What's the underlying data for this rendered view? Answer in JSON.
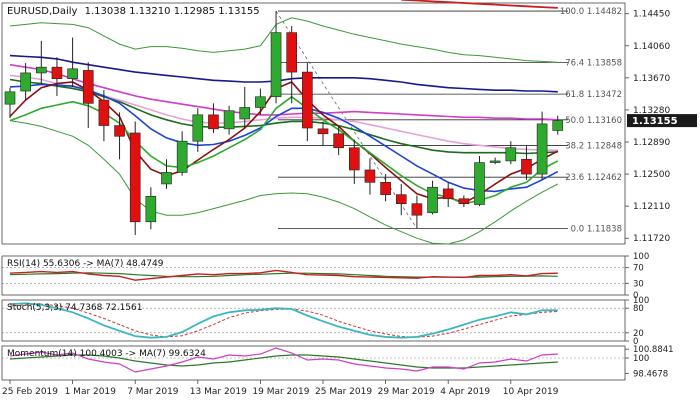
{
  "chart_data": {
    "type": "candlestick",
    "symbol": "EURUSD",
    "timeframe": "Daily",
    "header_title": "EURUSD,Daily",
    "ohlc_header": "1.13038 1.13210 1.12985 1.13155",
    "last_price_label": "1.13155",
    "ylim": [
      1.1165,
      1.1458
    ],
    "price_ticks": [
      {
        "v": 1.1445,
        "label": "1.14450"
      },
      {
        "v": 1.1406,
        "label": "1.14060"
      },
      {
        "v": 1.1367,
        "label": "1.13670"
      },
      {
        "v": 1.1328,
        "label": "1.13280"
      },
      {
        "v": 1.1289,
        "label": "1.12890"
      },
      {
        "v": 1.125,
        "label": "1.12500"
      },
      {
        "v": 1.1211,
        "label": "1.12110"
      },
      {
        "v": 1.1172,
        "label": "1.11720"
      }
    ],
    "fibonacci": [
      {
        "level": 1.14482,
        "label": "100.0 1.14482"
      },
      {
        "level": 1.13858,
        "label": "76.4 1.13858"
      },
      {
        "level": 1.13472,
        "label": "61.8 1.13472"
      },
      {
        "level": 1.1316,
        "label": "50.0 1.13160"
      },
      {
        "level": 1.12848,
        "label": "38.2 1.12848"
      },
      {
        "level": 1.12462,
        "label": "23.6 1.12462"
      },
      {
        "level": 1.11838,
        "label": "0.0 1.11838"
      }
    ],
    "x_labels": [
      {
        "i": 0,
        "label": "25 Feb 2019"
      },
      {
        "i": 4,
        "label": "1 Mar 2019"
      },
      {
        "i": 8,
        "label": "7 Mar 2019"
      },
      {
        "i": 12,
        "label": "13 Mar 2019"
      },
      {
        "i": 16,
        "label": "19 Mar 2019"
      },
      {
        "i": 20,
        "label": "25 Mar 2019"
      },
      {
        "i": 24,
        "label": "29 Mar 2019"
      },
      {
        "i": 28,
        "label": "4 Apr 2019"
      },
      {
        "i": 32,
        "label": "10 Apr 2019"
      }
    ],
    "candles": [
      {
        "o": 1.1335,
        "h": 1.1355,
        "l": 1.1318,
        "c": 1.135
      },
      {
        "o": 1.1351,
        "h": 1.1385,
        "l": 1.134,
        "c": 1.1373
      },
      {
        "o": 1.1373,
        "h": 1.1412,
        "l": 1.136,
        "c": 1.138
      },
      {
        "o": 1.138,
        "h": 1.1392,
        "l": 1.1345,
        "c": 1.1366
      },
      {
        "o": 1.1366,
        "h": 1.1416,
        "l": 1.1356,
        "c": 1.1378
      },
      {
        "o": 1.1376,
        "h": 1.1386,
        "l": 1.1306,
        "c": 1.1336
      },
      {
        "o": 1.134,
        "h": 1.1352,
        "l": 1.129,
        "c": 1.1309
      },
      {
        "o": 1.1309,
        "h": 1.1325,
        "l": 1.1268,
        "c": 1.1296
      },
      {
        "o": 1.13,
        "h": 1.1314,
        "l": 1.1176,
        "c": 1.1192
      },
      {
        "o": 1.1192,
        "h": 1.1234,
        "l": 1.1183,
        "c": 1.1223
      },
      {
        "o": 1.1238,
        "h": 1.1268,
        "l": 1.1232,
        "c": 1.1252
      },
      {
        "o": 1.1252,
        "h": 1.1302,
        "l": 1.1248,
        "c": 1.129
      },
      {
        "o": 1.129,
        "h": 1.133,
        "l": 1.1277,
        "c": 1.1322
      },
      {
        "o": 1.1322,
        "h": 1.1336,
        "l": 1.13,
        "c": 1.1305
      },
      {
        "o": 1.1305,
        "h": 1.1333,
        "l": 1.1298,
        "c": 1.1327
      },
      {
        "o": 1.1317,
        "h": 1.1356,
        "l": 1.1306,
        "c": 1.1331
      },
      {
        "o": 1.1331,
        "h": 1.1354,
        "l": 1.1322,
        "c": 1.1344
      },
      {
        "o": 1.1344,
        "h": 1.1448,
        "l": 1.1336,
        "c": 1.1422
      },
      {
        "o": 1.1422,
        "h": 1.143,
        "l": 1.1336,
        "c": 1.1374
      },
      {
        "o": 1.1374,
        "h": 1.1385,
        "l": 1.129,
        "c": 1.1306
      },
      {
        "o": 1.1305,
        "h": 1.1314,
        "l": 1.1284,
        "c": 1.1299
      },
      {
        "o": 1.1299,
        "h": 1.1308,
        "l": 1.1273,
        "c": 1.1282
      },
      {
        "o": 1.1282,
        "h": 1.1292,
        "l": 1.1238,
        "c": 1.1255
      },
      {
        "o": 1.1255,
        "h": 1.1269,
        "l": 1.1225,
        "c": 1.124
      },
      {
        "o": 1.124,
        "h": 1.125,
        "l": 1.1217,
        "c": 1.1225
      },
      {
        "o": 1.1225,
        "h": 1.1238,
        "l": 1.12,
        "c": 1.1214
      },
      {
        "o": 1.1214,
        "h": 1.1224,
        "l": 1.1184,
        "c": 1.12
      },
      {
        "o": 1.1203,
        "h": 1.1242,
        "l": 1.1201,
        "c": 1.1234
      },
      {
        "o": 1.1232,
        "h": 1.124,
        "l": 1.121,
        "c": 1.122
      },
      {
        "o": 1.122,
        "h": 1.1224,
        "l": 1.121,
        "c": 1.1214
      },
      {
        "o": 1.1213,
        "h": 1.1272,
        "l": 1.1211,
        "c": 1.1264
      },
      {
        "o": 1.1264,
        "h": 1.127,
        "l": 1.1262,
        "c": 1.1266
      },
      {
        "o": 1.1266,
        "h": 1.129,
        "l": 1.1262,
        "c": 1.1282
      },
      {
        "o": 1.1268,
        "h": 1.1284,
        "l": 1.1243,
        "c": 1.125
      },
      {
        "o": 1.125,
        "h": 1.1326,
        "l": 1.1243,
        "c": 1.1311
      },
      {
        "o": 1.1303,
        "h": 1.1321,
        "l": 1.1298,
        "c": 1.1315
      }
    ],
    "overlays": [
      {
        "name": "ma-darkblue",
        "color": "#141a8c",
        "width": 1.6,
        "values": [
          1.1394,
          1.1393,
          1.1392,
          1.139,
          1.1386,
          1.1383,
          1.138,
          1.1377,
          1.1374,
          1.1372,
          1.137,
          1.1368,
          1.1366,
          1.1364,
          1.1363,
          1.1362,
          1.1362,
          1.1363,
          1.1366,
          1.1367,
          1.1367,
          1.1367,
          1.1367,
          1.1366,
          1.1364,
          1.1362,
          1.1359,
          1.1357,
          1.1355,
          1.1354,
          1.1353,
          1.1352,
          1.1352,
          1.1351,
          1.1351,
          1.135
        ]
      },
      {
        "name": "ma-magenta",
        "color": "#d23cc8",
        "width": 1.6,
        "values": [
          1.1383,
          1.138,
          1.1377,
          1.1372,
          1.1366,
          1.136,
          1.1355,
          1.135,
          1.1345,
          1.1341,
          1.1338,
          1.1335,
          1.1332,
          1.1329,
          1.1326,
          1.1324,
          1.1322,
          1.1322,
          1.1323,
          1.1324,
          1.1324,
          1.1325,
          1.1326,
          1.1325,
          1.1324,
          1.1323,
          1.1322,
          1.1321,
          1.132,
          1.1319,
          1.1319,
          1.1318,
          1.1318,
          1.1317,
          1.1317,
          1.1316
        ]
      },
      {
        "name": "ma-pink",
        "color": "#e8a0d8",
        "width": 1.6,
        "values": [
          1.137,
          1.1368,
          1.1365,
          1.136,
          1.1355,
          1.135,
          1.1345,
          1.134,
          1.1334,
          1.1328,
          1.1322,
          1.1317,
          1.1313,
          1.1312,
          1.1312,
          1.1314,
          1.1316,
          1.1318,
          1.1319,
          1.1319,
          1.1318,
          1.1316,
          1.1314,
          1.131,
          1.1306,
          1.1302,
          1.1298,
          1.1294,
          1.129,
          1.1287,
          1.1285,
          1.1283,
          1.1281,
          1.128,
          1.1279,
          1.1279
        ]
      },
      {
        "name": "ma-darkgreen",
        "color": "#1a6e1a",
        "width": 1.6,
        "values": [
          1.1365,
          1.1362,
          1.136,
          1.1357,
          1.1354,
          1.135,
          1.1344,
          1.1338,
          1.133,
          1.1322,
          1.1316,
          1.1311,
          1.1308,
          1.1307,
          1.1307,
          1.1308,
          1.1309,
          1.1312,
          1.1314,
          1.1314,
          1.1312,
          1.1309,
          1.1304,
          1.1298,
          1.1292,
          1.1287,
          1.1283,
          1.1279,
          1.1277,
          1.1276,
          1.1276,
          1.1276,
          1.1276,
          1.1275,
          1.1276,
          1.1277
        ]
      },
      {
        "name": "bb-upper",
        "color": "#3a9a3a",
        "width": 1,
        "values": [
          1.143,
          1.1432,
          1.1434,
          1.1433,
          1.1432,
          1.1428,
          1.1418,
          1.1408,
          1.1402,
          1.1405,
          1.1405,
          1.1403,
          1.14,
          1.1398,
          1.14,
          1.1402,
          1.1406,
          1.1432,
          1.144,
          1.1436,
          1.143,
          1.1425,
          1.142,
          1.1416,
          1.1412,
          1.1408,
          1.1405,
          1.1402,
          1.1398,
          1.1395,
          1.1394,
          1.1392,
          1.139,
          1.1388,
          1.1387,
          1.1386
        ]
      },
      {
        "name": "bb-lower",
        "color": "#3a9a3a",
        "width": 1,
        "values": [
          1.1315,
          1.1312,
          1.1308,
          1.1302,
          1.1296,
          1.1285,
          1.1268,
          1.125,
          1.122,
          1.1205,
          1.12,
          1.12,
          1.1203,
          1.1208,
          1.1213,
          1.1218,
          1.1224,
          1.1226,
          1.1227,
          1.1226,
          1.1222,
          1.1216,
          1.1208,
          1.1198,
          1.1188,
          1.118,
          1.1172,
          1.1166,
          1.1165,
          1.117,
          1.118,
          1.1192,
          1.1205,
          1.1217,
          1.1228,
          1.1238
        ]
      },
      {
        "name": "ema-blue",
        "color": "#1a44d8",
        "width": 1.6,
        "values": [
          1.1356,
          1.1357,
          1.1359,
          1.1358,
          1.1357,
          1.1352,
          1.1345,
          1.1336,
          1.1321,
          1.1305,
          1.1294,
          1.1288,
          1.1285,
          1.1286,
          1.129,
          1.1297,
          1.1306,
          1.132,
          1.133,
          1.133,
          1.1325,
          1.1318,
          1.1308,
          1.1296,
          1.1284,
          1.1272,
          1.126,
          1.125,
          1.124,
          1.1233,
          1.123,
          1.1229,
          1.1232,
          1.1234,
          1.1243,
          1.1253
        ]
      },
      {
        "name": "ema-darkred",
        "color": "#8a1010",
        "width": 1.6,
        "values": [
          1.132,
          1.134,
          1.1355,
          1.136,
          1.1362,
          1.1352,
          1.1338,
          1.132,
          1.1278,
          1.1256,
          1.1248,
          1.1254,
          1.1267,
          1.128,
          1.1292,
          1.1306,
          1.1326,
          1.1354,
          1.1362,
          1.134,
          1.1322,
          1.1308,
          1.129,
          1.1275,
          1.1258,
          1.1242,
          1.1226,
          1.122,
          1.1222,
          1.1215,
          1.1225,
          1.1238,
          1.125,
          1.1257,
          1.1268,
          1.1278
        ]
      },
      {
        "name": "ema-green",
        "color": "#2eaa2e",
        "width": 1.6,
        "values": [
          1.1315,
          1.1322,
          1.133,
          1.1334,
          1.1338,
          1.1333,
          1.1324,
          1.1312,
          1.129,
          1.1272,
          1.126,
          1.1258,
          1.1264,
          1.1272,
          1.1282,
          1.1292,
          1.1304,
          1.133,
          1.1344,
          1.133,
          1.1316,
          1.1304,
          1.129,
          1.1276,
          1.1262,
          1.1248,
          1.1236,
          1.1226,
          1.1222,
          1.1214,
          1.1218,
          1.1224,
          1.1234,
          1.124,
          1.1256,
          1.1266
        ]
      },
      {
        "name": "ma-red-top",
        "color": "#c81e1e",
        "width": 1.8,
        "values": [
          null,
          null,
          null,
          null,
          null,
          null,
          null,
          null,
          null,
          null,
          null,
          null,
          null,
          null,
          null,
          null,
          null,
          null,
          null,
          null,
          null,
          null,
          null,
          null,
          null,
          1.1462,
          1.1461,
          1.146,
          1.1459,
          1.1458,
          1.1457,
          1.1456,
          1.1455,
          1.1454,
          1.1453,
          1.1452
        ]
      }
    ],
    "indicators": {
      "rsi": {
        "label": "RSI(14) 55.6306 -> MA(7) 48.4749",
        "ylim": [
          0,
          100
        ],
        "levels": [
          {
            "v": 70,
            "label": "70"
          },
          {
            "v": 30,
            "label": "30"
          }
        ],
        "ticks": [
          {
            "v": 100,
            "label": "100"
          },
          {
            "v": 0,
            "label": "0"
          }
        ],
        "line_color": "#c81e1e",
        "ma_color": "#2a7a2a",
        "values": [
          56,
          58,
          60,
          58,
          60,
          54,
          50,
          48,
          38,
          42,
          46,
          50,
          54,
          52,
          55,
          55,
          57,
          63,
          58,
          52,
          51,
          50,
          47,
          46,
          45,
          44,
          43,
          47,
          46,
          45,
          50,
          50,
          52,
          49,
          55,
          56
        ],
        "ma_values": [
          52,
          53,
          54,
          55,
          56,
          57,
          56,
          55,
          52,
          50,
          48,
          47,
          47,
          48,
          50,
          52,
          53,
          55,
          56,
          56,
          55,
          54,
          52,
          50,
          48,
          47,
          46,
          46,
          46,
          46,
          46,
          47,
          48,
          48,
          49,
          48
        ]
      },
      "stoch": {
        "label": "Stoch(5,3,3) 74.7368 72.1561",
        "ylim": [
          0,
          100
        ],
        "ticks": [
          {
            "v": 100,
            "label": "100"
          },
          {
            "v": 80,
            "label": "80"
          },
          {
            "v": 20,
            "label": "20"
          },
          {
            "v": 0,
            "label": "0"
          }
        ],
        "k_color": "#3ab8c0",
        "d_color": "#d23232",
        "k": [
          90,
          92,
          88,
          80,
          70,
          55,
          38,
          25,
          12,
          8,
          10,
          22,
          42,
          60,
          70,
          75,
          76,
          80,
          78,
          62,
          48,
          35,
          25,
          15,
          10,
          8,
          10,
          18,
          28,
          40,
          52,
          60,
          70,
          65,
          75,
          75
        ],
        "d": [
          85,
          88,
          90,
          86,
          80,
          68,
          55,
          40,
          25,
          15,
          10,
          13,
          25,
          40,
          57,
          68,
          74,
          77,
          78,
          73,
          63,
          48,
          36,
          25,
          17,
          11,
          9,
          12,
          19,
          29,
          40,
          51,
          61,
          65,
          70,
          72
        ]
      },
      "momentum": {
        "label": "Momentum(14) 100.4003 -> MA(7) 99.6324",
        "ylim": [
          97.8,
          101.2
        ],
        "ticks": [
          {
            "v": 100.8841,
            "label": "100.8841"
          },
          {
            "v": 100,
            "label": "100"
          },
          {
            "v": 98.4678,
            "label": "98.4678"
          }
        ],
        "line_color": "#d23cc8",
        "ma_color": "#2a7a2a",
        "values": [
          100.2,
          100.4,
          100.6,
          100.3,
          100.5,
          99.9,
          99.6,
          99.4,
          98.6,
          98.9,
          99.2,
          99.6,
          100.1,
          99.9,
          100.3,
          100.2,
          100.4,
          101.0,
          100.5,
          99.8,
          99.9,
          99.8,
          99.4,
          99.2,
          99.0,
          98.9,
          98.7,
          99.1,
          99.1,
          98.9,
          99.5,
          99.6,
          99.9,
          99.7,
          100.3,
          100.4
        ],
        "ma_values": [
          99.9,
          100.0,
          100.1,
          100.2,
          100.3,
          100.3,
          100.2,
          100.0,
          99.7,
          99.5,
          99.3,
          99.2,
          99.3,
          99.5,
          99.6,
          99.8,
          100.0,
          100.2,
          100.3,
          100.3,
          100.2,
          100.1,
          99.9,
          99.7,
          99.5,
          99.3,
          99.1,
          99.0,
          99.0,
          99.0,
          99.1,
          99.2,
          99.3,
          99.4,
          99.5,
          99.6
        ]
      }
    },
    "colors": {
      "bull": "#2eaa2e",
      "bear": "#e01010",
      "fib": "#2b2b2b",
      "grid_text": "#222222",
      "last_price_bg": "#1a1a1a",
      "last_price_fg": "#ffffff"
    }
  }
}
